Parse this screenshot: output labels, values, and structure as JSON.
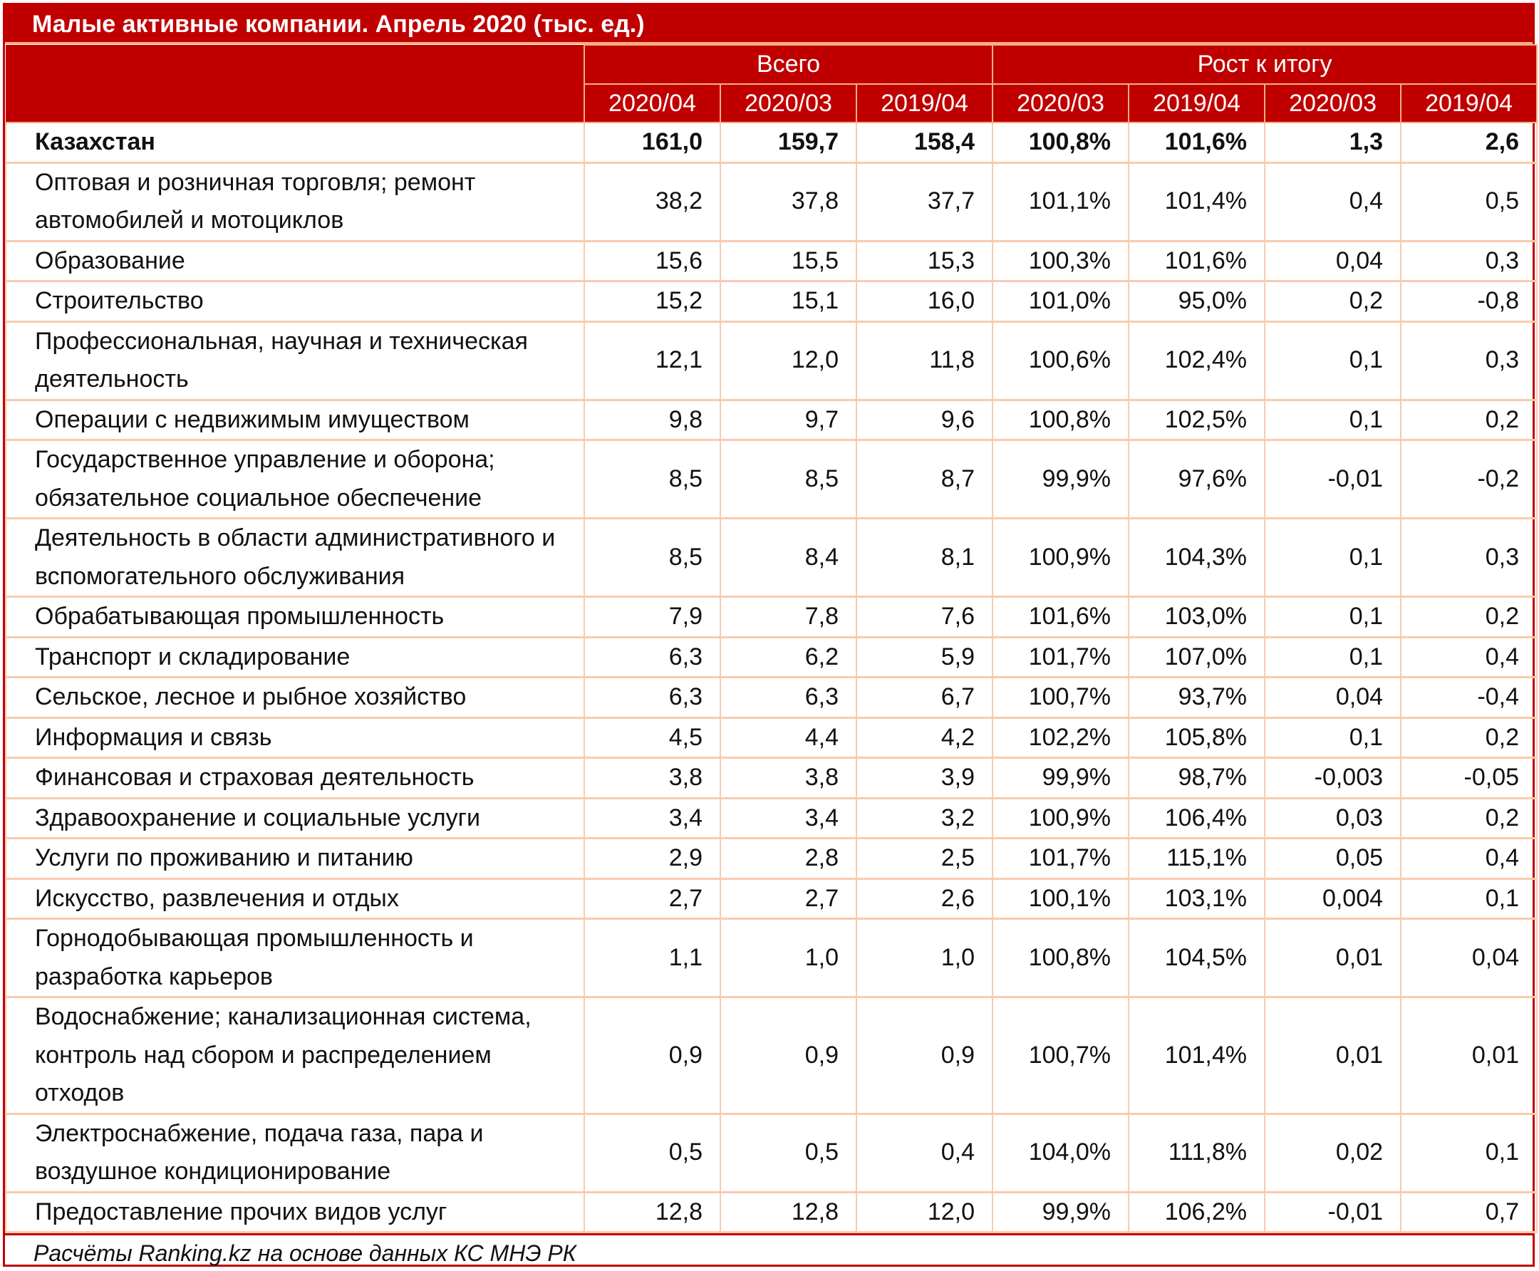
{
  "title": "Малые активные компании. Апрель 2020 (тыс. ед.)",
  "header": {
    "groups": [
      {
        "label": "",
        "span": 1
      },
      {
        "label": "Всего",
        "span": 3
      },
      {
        "label": "Рост к итогу",
        "span": 4
      }
    ],
    "columns": [
      "2020/04",
      "2020/03",
      "2019/04",
      "2020/03",
      "2019/04",
      "2020/03",
      "2019/04"
    ]
  },
  "rows": [
    {
      "label": "Казахстан",
      "values": [
        "161,0",
        "159,7",
        "158,4",
        "100,8%",
        "101,6%",
        "1,3",
        "2,6"
      ],
      "bold": true
    },
    {
      "label": "Оптовая и розничная торговля; ремонт автомобилей и мотоциклов",
      "values": [
        "38,2",
        "37,8",
        "37,7",
        "101,1%",
        "101,4%",
        "0,4",
        "0,5"
      ]
    },
    {
      "label": "Образование",
      "values": [
        "15,6",
        "15,5",
        "15,3",
        "100,3%",
        "101,6%",
        "0,04",
        "0,3"
      ]
    },
    {
      "label": "Строительство",
      "values": [
        "15,2",
        "15,1",
        "16,0",
        "101,0%",
        "95,0%",
        "0,2",
        "-0,8"
      ]
    },
    {
      "label": "Профессиональная, научная и техническая деятельность",
      "values": [
        "12,1",
        "12,0",
        "11,8",
        "100,6%",
        "102,4%",
        "0,1",
        "0,3"
      ]
    },
    {
      "label": "Операции с недвижимым имуществом",
      "values": [
        "9,8",
        "9,7",
        "9,6",
        "100,8%",
        "102,5%",
        "0,1",
        "0,2"
      ]
    },
    {
      "label": "Государственное управление и оборона; обязательное социальное обеспечение",
      "values": [
        "8,5",
        "8,5",
        "8,7",
        "99,9%",
        "97,6%",
        "-0,01",
        "-0,2"
      ]
    },
    {
      "label": "Деятельность в области административного и вспомогательного обслуживания",
      "values": [
        "8,5",
        "8,4",
        "8,1",
        "100,9%",
        "104,3%",
        "0,1",
        "0,3"
      ]
    },
    {
      "label": "Обрабатывающая промышленность",
      "values": [
        "7,9",
        "7,8",
        "7,6",
        "101,6%",
        "103,0%",
        "0,1",
        "0,2"
      ]
    },
    {
      "label": "Транспорт и складирование",
      "values": [
        "6,3",
        "6,2",
        "5,9",
        "101,7%",
        "107,0%",
        "0,1",
        "0,4"
      ]
    },
    {
      "label": "Сельское, лесное и рыбное хозяйство",
      "values": [
        "6,3",
        "6,3",
        "6,7",
        "100,7%",
        "93,7%",
        "0,04",
        "-0,4"
      ]
    },
    {
      "label": "Информация и связь",
      "values": [
        "4,5",
        "4,4",
        "4,2",
        "102,2%",
        "105,8%",
        "0,1",
        "0,2"
      ]
    },
    {
      "label": "Финансовая и страховая деятельность",
      "values": [
        "3,8",
        "3,8",
        "3,9",
        "99,9%",
        "98,7%",
        "-0,003",
        "-0,05"
      ]
    },
    {
      "label": "Здравоохранение и социальные услуги",
      "values": [
        "3,4",
        "3,4",
        "3,2",
        "100,9%",
        "106,4%",
        "0,03",
        "0,2"
      ]
    },
    {
      "label": "Услуги по проживанию и питанию",
      "values": [
        "2,9",
        "2,8",
        "2,5",
        "101,7%",
        "115,1%",
        "0,05",
        "0,4"
      ]
    },
    {
      "label": "Искусство, развлечения и отдых",
      "values": [
        "2,7",
        "2,7",
        "2,6",
        "100,1%",
        "103,1%",
        "0,004",
        "0,1"
      ]
    },
    {
      "label": "Горнодобывающая промышленность и разработка карьеров",
      "values": [
        "1,1",
        "1,0",
        "1,0",
        "100,8%",
        "104,5%",
        "0,01",
        "0,04"
      ]
    },
    {
      "label": "Водоснабжение; канализационная система, контроль над сбором и распределением отходов",
      "values": [
        "0,9",
        "0,9",
        "0,9",
        "100,7%",
        "101,4%",
        "0,01",
        "0,01"
      ]
    },
    {
      "label": "Электроснабжение, подача газа, пара и воздушное кондиционирование",
      "values": [
        "0,5",
        "0,5",
        "0,4",
        "104,0%",
        "111,8%",
        "0,02",
        "0,1"
      ]
    },
    {
      "label": "Предоставление прочих видов услуг",
      "values": [
        "12,8",
        "12,8",
        "12,0",
        "99,9%",
        "106,2%",
        "-0,01",
        "0,7"
      ]
    }
  ],
  "footer": "Расчёты Ranking.kz на основе данных КС МНЭ РК",
  "colors": {
    "header_bg": "#c00000",
    "header_text": "#ffffff",
    "grid_line": "#f8cbad",
    "frame": "#c00000"
  }
}
